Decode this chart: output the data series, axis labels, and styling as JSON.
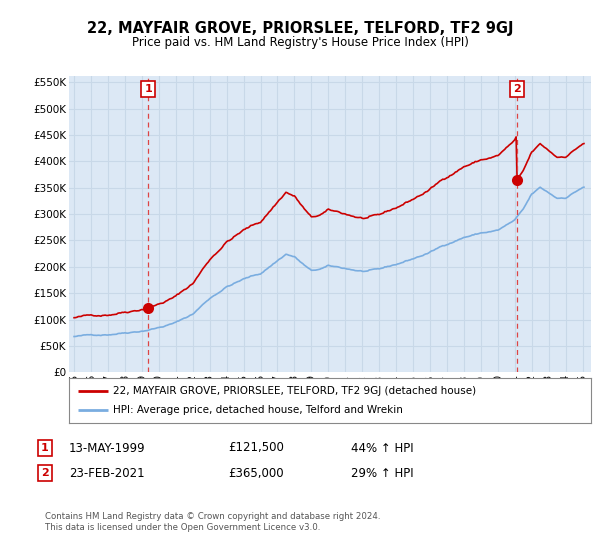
{
  "title": "22, MAYFAIR GROVE, PRIORSLEE, TELFORD, TF2 9GJ",
  "subtitle": "Price paid vs. HM Land Registry's House Price Index (HPI)",
  "sale1_year": 1999.37,
  "sale1_price": 121500,
  "sale1_display": "13-MAY-1999",
  "sale1_pct": "44% ↑ HPI",
  "sale2_year": 2021.14,
  "sale2_price": 365000,
  "sale2_display": "23-FEB-2021",
  "sale2_pct": "29% ↑ HPI",
  "red_line_color": "#cc0000",
  "blue_line_color": "#7aade0",
  "vline_color": "#dd4444",
  "grid_color": "#c8d8e8",
  "bg_plot_color": "#dce8f5",
  "background_color": "#ffffff",
  "legend_label1": "22, MAYFAIR GROVE, PRIORSLEE, TELFORD, TF2 9GJ (detached house)",
  "legend_label2": "HPI: Average price, detached house, Telford and Wrekin",
  "footer": "Contains HM Land Registry data © Crown copyright and database right 2024.\nThis data is licensed under the Open Government Licence v3.0.",
  "ylim": [
    0,
    562500
  ],
  "yticks": [
    0,
    50000,
    100000,
    150000,
    200000,
    250000,
    300000,
    350000,
    400000,
    450000,
    500000,
    550000
  ],
  "xlim_start": 1994.7,
  "xlim_end": 2025.5
}
